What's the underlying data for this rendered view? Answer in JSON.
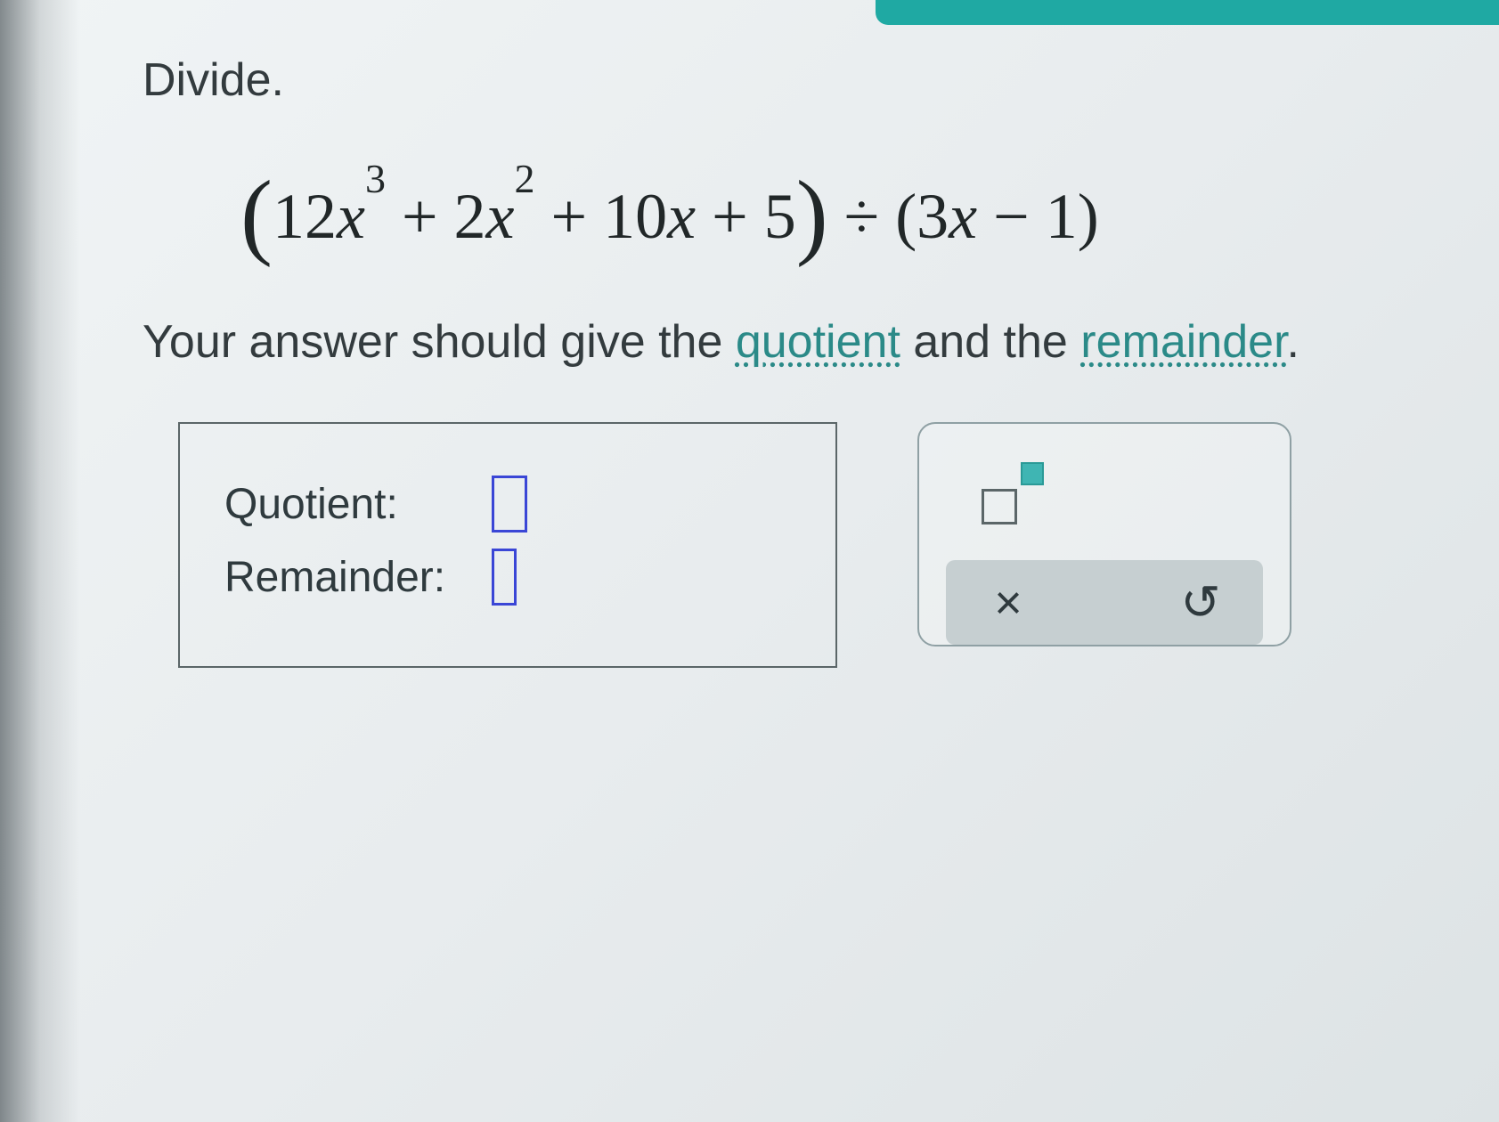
{
  "instruction": "Divide.",
  "equation": {
    "terms": [
      {
        "coef": "12",
        "var": "x",
        "exp": "3"
      },
      {
        "op": "+",
        "coef": "2",
        "var": "x",
        "exp": "2"
      },
      {
        "op": "+",
        "coef": "10",
        "var": "x"
      },
      {
        "op": "+",
        "coef": "5"
      }
    ],
    "divisor": [
      {
        "coef": "3",
        "var": "x"
      },
      {
        "op": "−",
        "coef": "1"
      }
    ],
    "div_symbol": "÷"
  },
  "hint": {
    "prefix": "Your answer should give the ",
    "kw1": "quotient",
    "mid": " and the ",
    "kw2": "remainder",
    "suffix": "."
  },
  "answer": {
    "quotient_label": "Quotient:",
    "remainder_label": "Remainder:"
  },
  "toolbox": {
    "exponent_tool": "exponent-tool",
    "clear_icon": "×",
    "undo_icon": "↺"
  },
  "colors": {
    "accent": "#1fa9a3",
    "link": "#2b8a88",
    "blank_border": "#3a46d6",
    "box_border": "#5b6668",
    "tool_shade": "#c6cfd1",
    "text": "#2f3a3e"
  }
}
